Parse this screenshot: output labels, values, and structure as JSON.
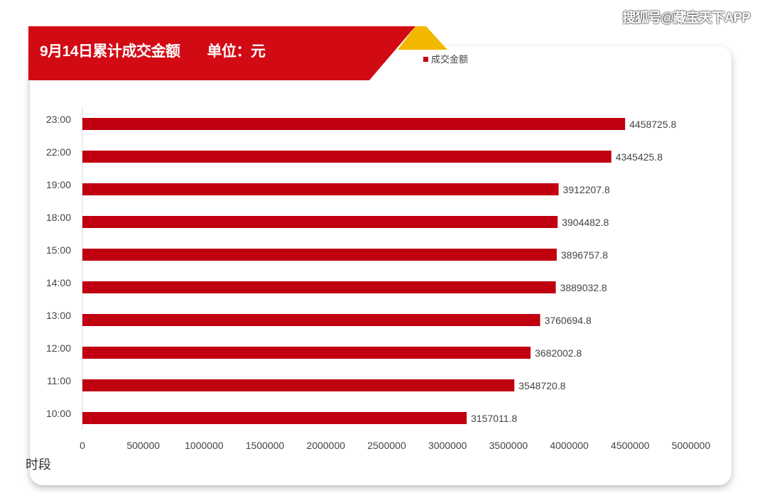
{
  "watermark": "搜狐号@藏宝天下APP",
  "header": {
    "title": "9月14日累计成交金额",
    "unit": "单位：元"
  },
  "colors": {
    "bar": "#c00010",
    "banner": "#d20a14",
    "accent": "#f2b800"
  },
  "chart_data": {
    "type": "bar",
    "orientation": "horizontal",
    "title": "9月14日累计成交金额",
    "ylabel": "时段",
    "xlabel": "",
    "legend": {
      "entries": [
        "成交金额"
      ],
      "placement": "top"
    },
    "categories": [
      "23:00",
      "22:00",
      "19:00",
      "18:00",
      "15:00",
      "14:00",
      "13:00",
      "12:00",
      "11:00",
      "10:00"
    ],
    "series": [
      {
        "name": "成交金额",
        "values": [
          4458725.8,
          4345425.8,
          3912207.8,
          3904482.8,
          3896757.8,
          3889032.8,
          3760694.8,
          3682002.8,
          3548720.8,
          3157011.8
        ]
      }
    ],
    "data_labels": [
      "4458725.8",
      "4345425.8",
      "3912207.8",
      "3904482.8",
      "3896757.8",
      "3889032.8",
      "3760694.8",
      "3682002.8",
      "3548720.8",
      "3157011.8"
    ],
    "xlim": [
      0,
      5000000
    ],
    "xticks": [
      "0",
      "500000",
      "1000000",
      "1500000",
      "2000000",
      "2500000",
      "3000000",
      "3500000",
      "4000000",
      "4500000",
      "5000000"
    ],
    "grid": false
  }
}
